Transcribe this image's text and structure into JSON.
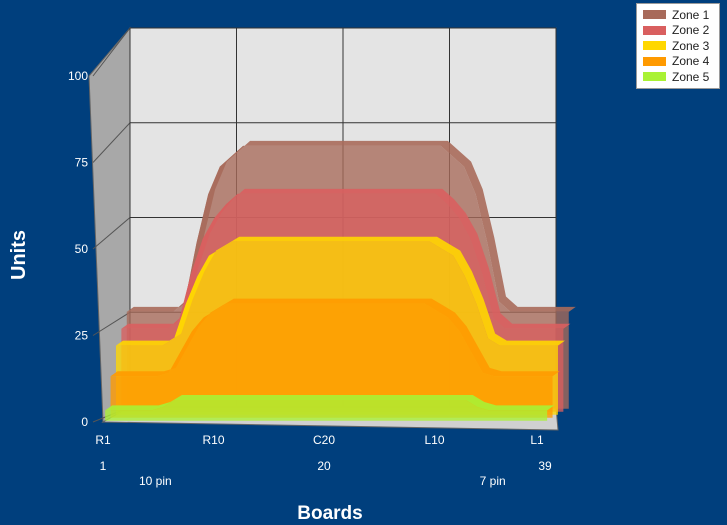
{
  "chart_data": {
    "type": "area",
    "categories": [
      "R1",
      "R10",
      "C20",
      "L10",
      "L1"
    ],
    "x_sublabels": [
      {
        "text": "1",
        "at": 0
      },
      {
        "text": "10 pin",
        "at": 4.5
      },
      {
        "text": "20",
        "at": 19
      },
      {
        "text": "7 pin",
        "at": 33.5
      },
      {
        "text": "39",
        "at": 38
      }
    ],
    "xlabel": "Boards",
    "ylabel": "Units",
    "ylim": [
      0,
      100
    ],
    "y_ticks": [
      0,
      25,
      50,
      75,
      100
    ],
    "grid": true,
    "legend_position": "top-right",
    "x": [
      0,
      4,
      5,
      6,
      7,
      8,
      9,
      10,
      11,
      12,
      13,
      14,
      15,
      16,
      17,
      18,
      19,
      20,
      21,
      22,
      23,
      24,
      25,
      26,
      27,
      28,
      29,
      30,
      31,
      32,
      33,
      34,
      38
    ],
    "series": [
      {
        "name": "Zone 1",
        "color": "#a86a5a",
        "values": [
          28,
          28,
          31,
          48,
          62,
          70,
          73,
          76,
          76,
          76,
          76,
          76,
          76,
          76,
          76,
          76,
          76,
          76,
          76,
          76,
          76,
          76,
          76,
          76,
          76,
          73,
          70,
          62,
          48,
          31,
          28,
          28,
          28
        ]
      },
      {
        "name": "Zone 2",
        "color": "#d95f5f",
        "values": [
          24,
          24,
          27,
          40,
          50,
          56,
          60,
          63,
          63,
          63,
          63,
          63,
          63,
          63,
          63,
          63,
          63,
          63,
          63,
          63,
          63,
          63,
          63,
          63,
          63,
          60,
          56,
          50,
          40,
          27,
          24,
          24,
          24
        ]
      },
      {
        "name": "Zone 3",
        "color": "#ffd700",
        "values": [
          20,
          20,
          22,
          32,
          40,
          46,
          48,
          50,
          50,
          50,
          50,
          50,
          50,
          50,
          50,
          50,
          50,
          50,
          50,
          50,
          50,
          50,
          50,
          50,
          50,
          48,
          46,
          40,
          32,
          22,
          20,
          20,
          20
        ]
      },
      {
        "name": "Zone 4",
        "color": "#ff9a00",
        "values": [
          12,
          12,
          13,
          19,
          25,
          29,
          31,
          33,
          33,
          33,
          33,
          33,
          33,
          33,
          33,
          33,
          33,
          33,
          33,
          33,
          33,
          33,
          33,
          33,
          33,
          31,
          29,
          25,
          19,
          13,
          12,
          12,
          12
        ]
      },
      {
        "name": "Zone 5",
        "color": "#a9f234",
        "values": [
          3,
          3,
          4,
          6,
          6,
          6,
          6,
          6,
          6,
          6,
          6,
          6,
          6,
          6,
          6,
          6,
          6,
          6,
          6,
          6,
          6,
          6,
          6,
          6,
          6,
          6,
          6,
          6,
          6,
          4,
          3,
          3,
          3
        ]
      }
    ]
  }
}
